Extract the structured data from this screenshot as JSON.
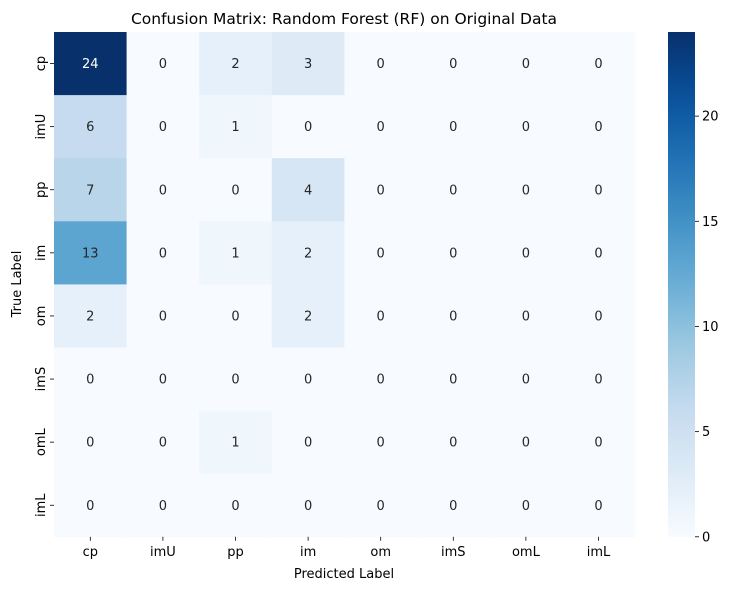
{
  "chart_data": {
    "type": "heatmap",
    "title": "Confusion Matrix: Random Forest (RF) on Original Data",
    "xlabel": "Predicted Label",
    "ylabel": "True Label",
    "x_categories": [
      "cp",
      "imU",
      "pp",
      "im",
      "om",
      "imS",
      "omL",
      "imL"
    ],
    "y_categories": [
      "cp",
      "imU",
      "pp",
      "im",
      "om",
      "imS",
      "omL",
      "imL"
    ],
    "values": [
      [
        24,
        0,
        2,
        3,
        0,
        0,
        0,
        0
      ],
      [
        6,
        0,
        1,
        0,
        0,
        0,
        0,
        0
      ],
      [
        7,
        0,
        0,
        4,
        0,
        0,
        0,
        0
      ],
      [
        13,
        0,
        1,
        2,
        0,
        0,
        0,
        0
      ],
      [
        2,
        0,
        0,
        2,
        0,
        0,
        0,
        0
      ],
      [
        0,
        0,
        0,
        0,
        0,
        0,
        0,
        0
      ],
      [
        0,
        0,
        1,
        0,
        0,
        0,
        0,
        0
      ],
      [
        0,
        0,
        0,
        0,
        0,
        0,
        0,
        0
      ]
    ],
    "colormap": "Blues",
    "colorbar": {
      "min": 0,
      "max": 24,
      "ticks": [
        0,
        5,
        10,
        15,
        20
      ]
    },
    "grid": false,
    "annotations": true
  }
}
